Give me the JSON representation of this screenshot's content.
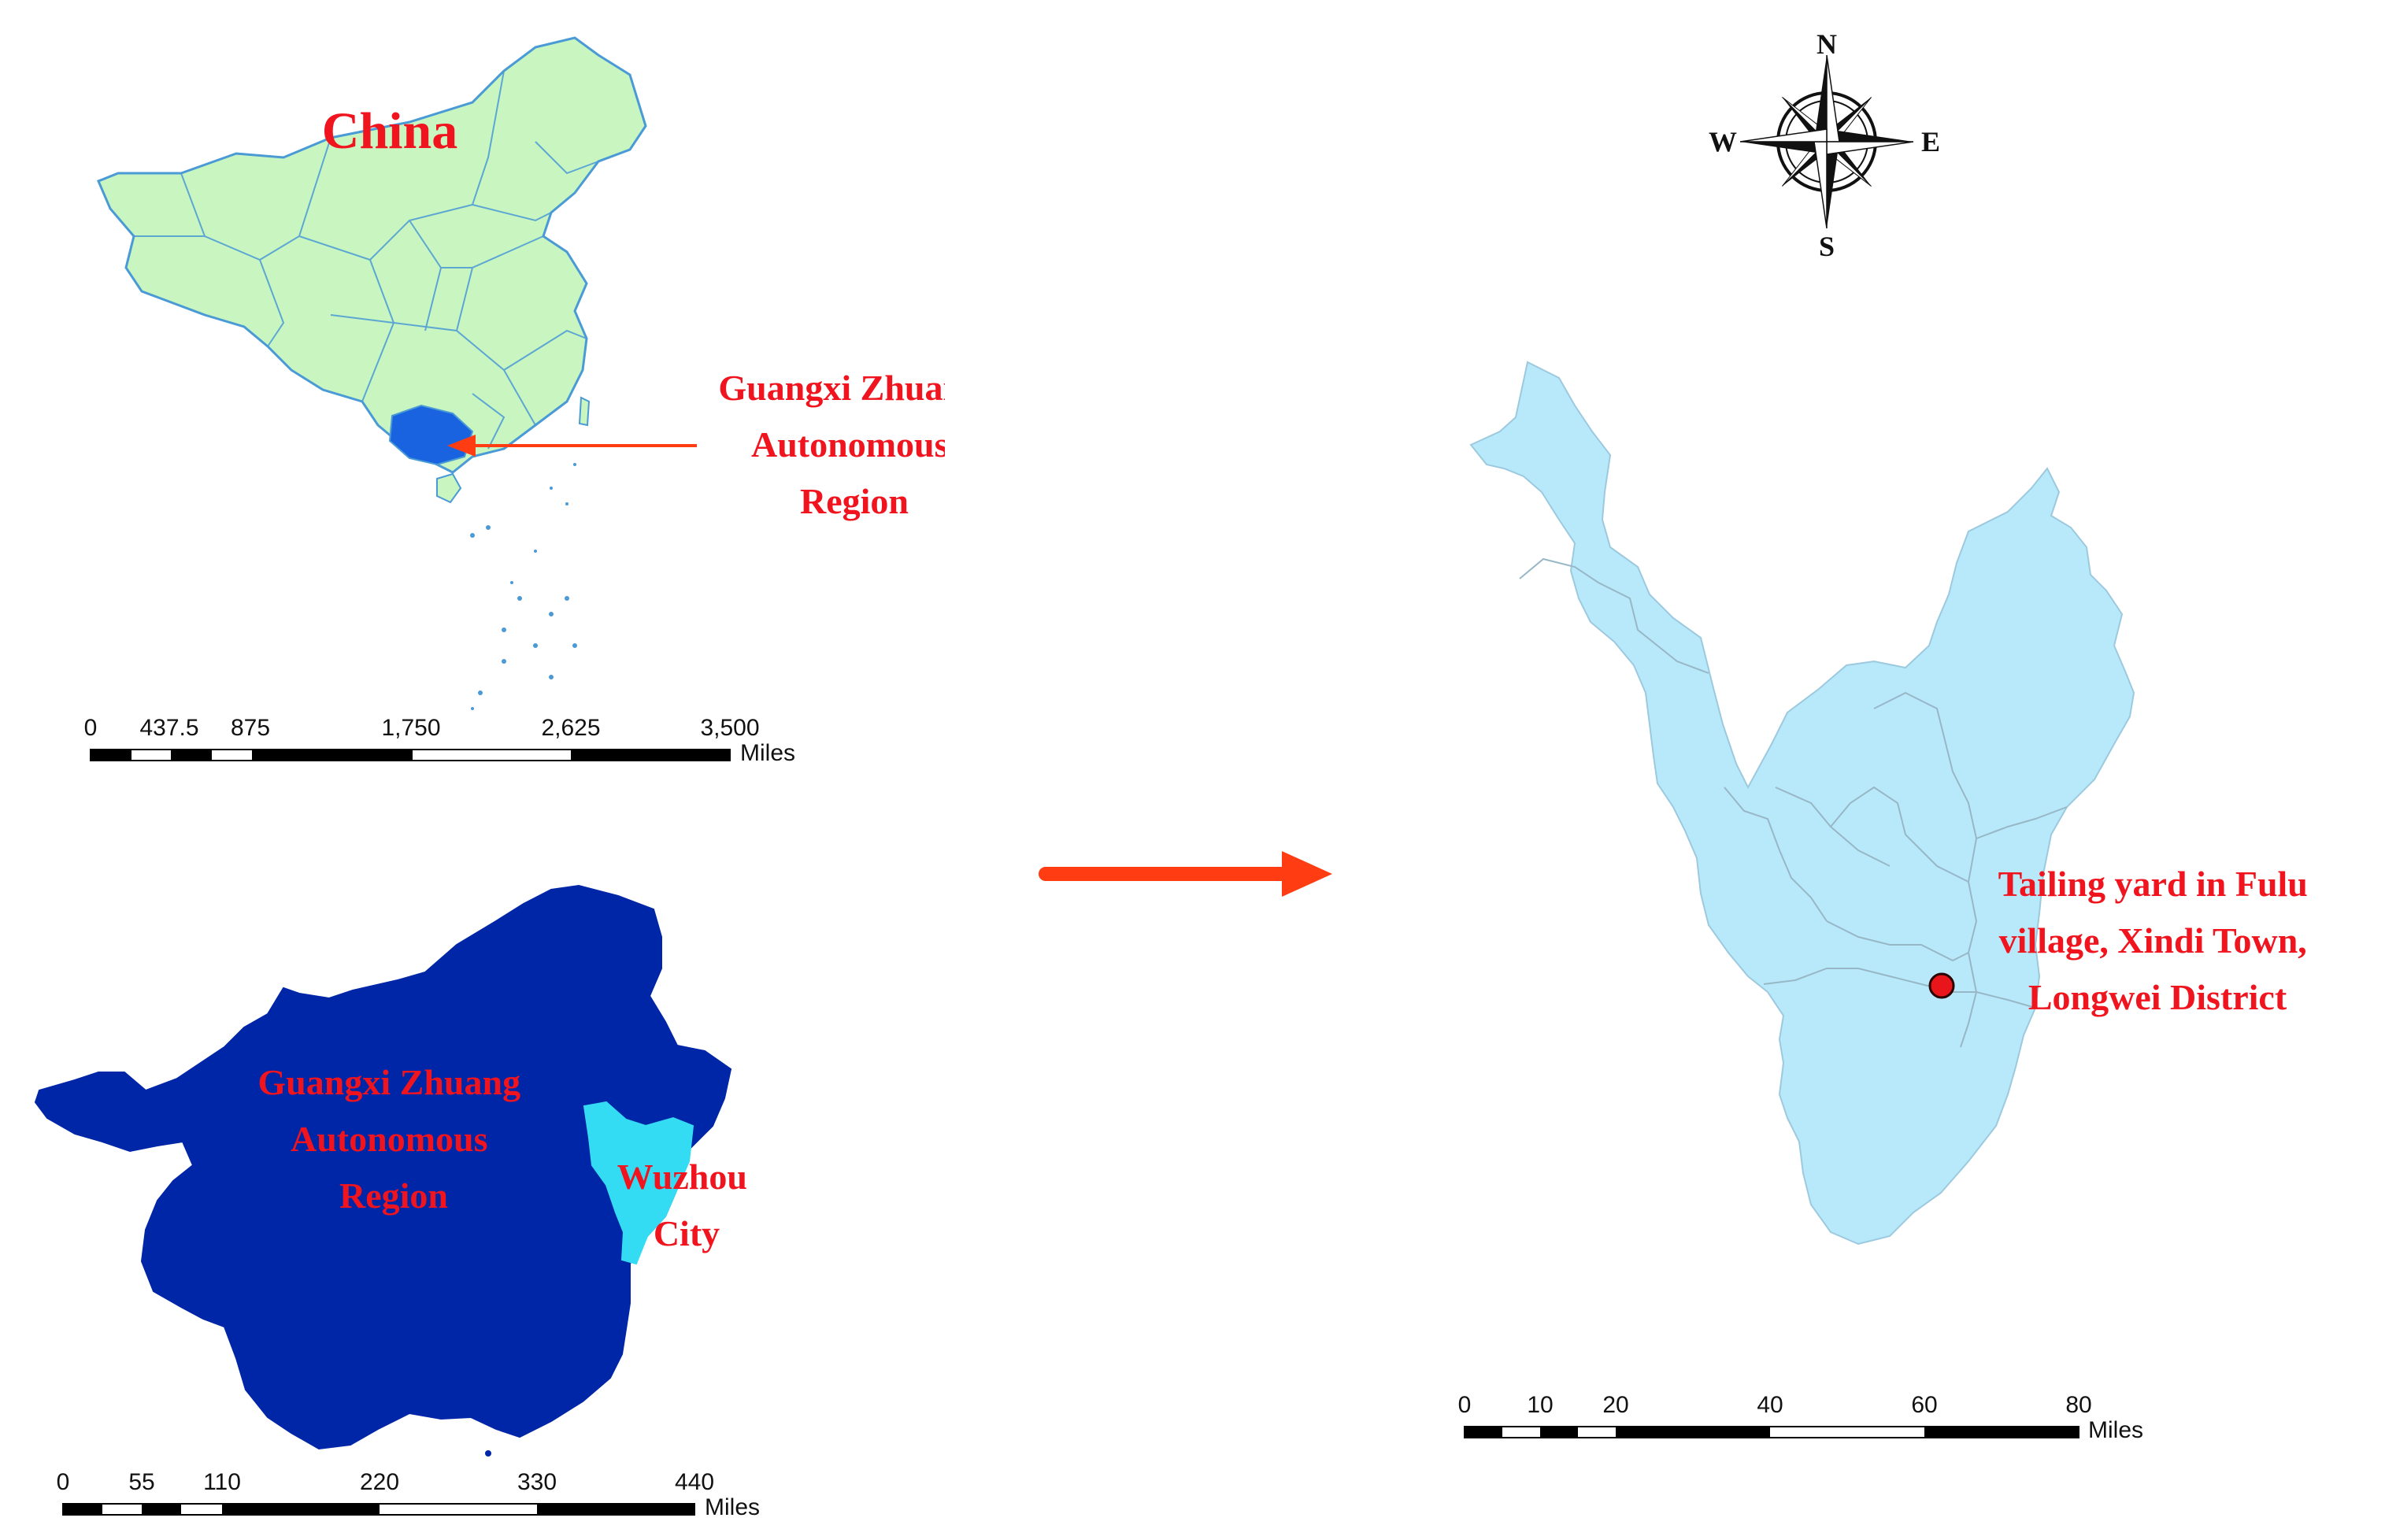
{
  "china_map": {
    "title": "China",
    "callout": [
      "Guangxi Zhuang",
      "Autonomous",
      "Region"
    ],
    "scale": {
      "ticks": [
        "0",
        "437.5",
        "875",
        "1,750",
        "2,625",
        "3,500"
      ],
      "unit": "Miles"
    }
  },
  "guangxi_map": {
    "region_label": [
      "Guangxi Zhuang",
      "Autonomous",
      "Region"
    ],
    "city_label": [
      "Wuzhou",
      "City"
    ],
    "scale": {
      "ticks": [
        "0",
        "55",
        "110",
        "220",
        "330",
        "440"
      ],
      "unit": "Miles"
    }
  },
  "wuzhou_map": {
    "site_label": [
      "Tailing yard in Fulu",
      "village, Xindi Town,",
      "Longwei District"
    ],
    "scale": {
      "ticks": [
        "0",
        "10",
        "20",
        "40",
        "60",
        "80"
      ],
      "unit": "Miles"
    }
  },
  "compass": {
    "north": "N",
    "south": "S",
    "east": "E",
    "west": "W"
  },
  "colors": {
    "china_fill": "#c9f5c1",
    "china_border": "#4a9ad6",
    "guangxi_highlight": "#1a63e0",
    "guangxi_fill": "#0026a8",
    "wuzhou_fill_small": "#34dcf3",
    "wuzhou_fill": "#b8e9fb",
    "label_red": "#f0141e",
    "arrow": "#ff3c12"
  }
}
